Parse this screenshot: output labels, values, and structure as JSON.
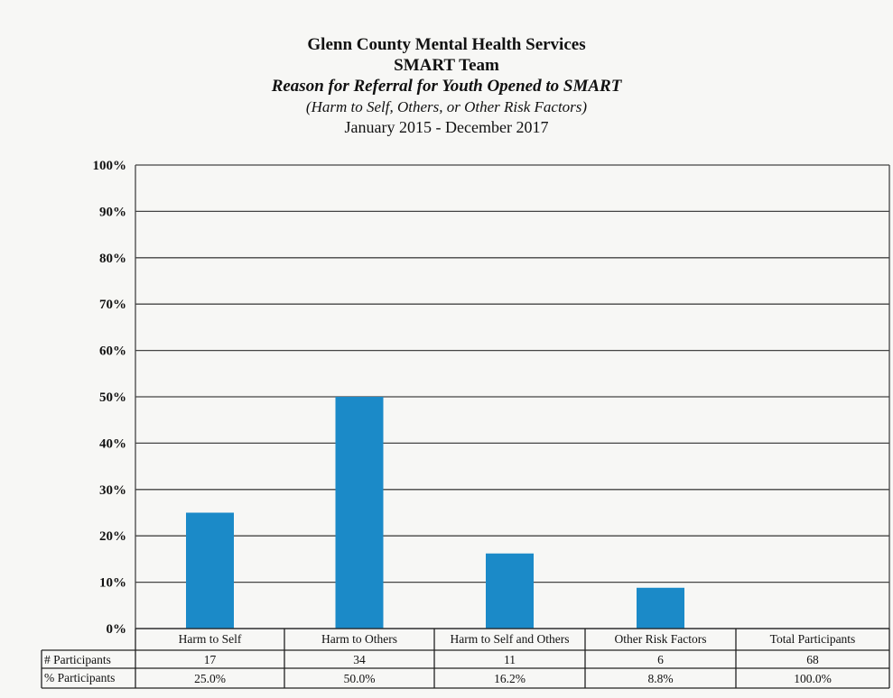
{
  "titles": {
    "line1": "Glenn County Mental Health Services",
    "line2": "SMART Team",
    "line3": "Reason for Referral for Youth Opened to SMART",
    "line4": "(Harm to Self, Others, or Other Risk Factors)",
    "line5": "January 2015 - December 2017"
  },
  "colors": {
    "bar": "#1b8ac8",
    "grid": "#444444"
  },
  "chart_data": {
    "type": "bar",
    "title": "Reason for Referral for Youth Opened to SMART",
    "categories": [
      "Harm to Self",
      "Harm to Others",
      "Harm to Self and Others",
      "Other Risk Factors",
      "Total Participants"
    ],
    "series": [
      {
        "values": [
          25.0,
          50.0,
          16.2,
          8.8,
          null
        ]
      }
    ],
    "y_ticks": [
      "0%",
      "10%",
      "20%",
      "30%",
      "40%",
      "50%",
      "60%",
      "70%",
      "80%",
      "90%",
      "100%"
    ],
    "ylim": [
      0,
      100
    ],
    "grid": true,
    "legend": "none",
    "table": {
      "row_headers": [
        "# Participants",
        "% Participants"
      ],
      "participants": [
        "17",
        "34",
        "11",
        "6",
        "68"
      ],
      "percent": [
        "25.0%",
        "50.0%",
        "16.2%",
        "8.8%",
        "100.0%"
      ]
    }
  }
}
